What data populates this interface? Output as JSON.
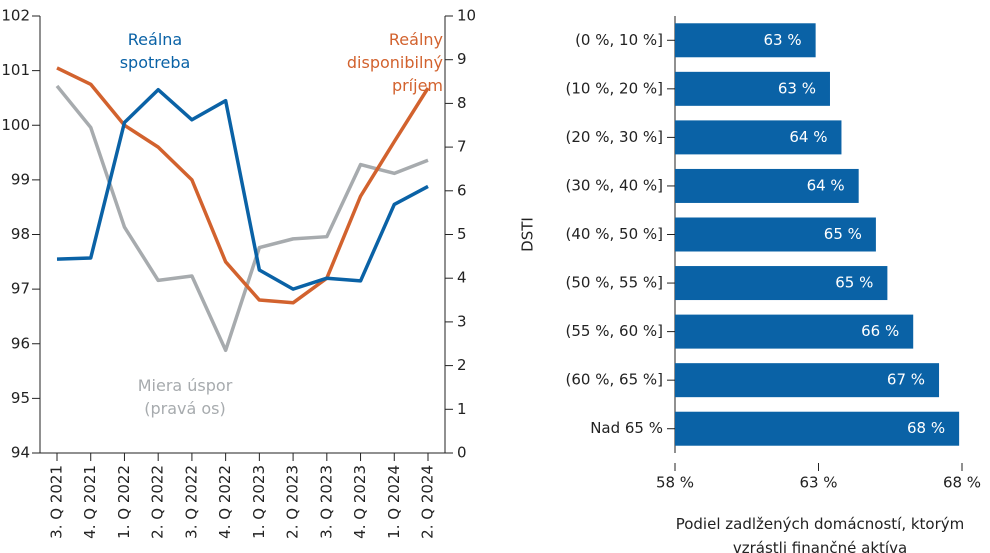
{
  "chart_data": [
    {
      "type": "line",
      "categories": [
        "3. Q 2021",
        "4. Q 2021",
        "1. Q 2022",
        "2. Q 2022",
        "3. Q 2022",
        "4. Q 2022",
        "1. Q 2023",
        "2. Q 2023",
        "3. Q 2023",
        "4. Q 2023",
        "1. Q 2024",
        "2. Q 2024"
      ],
      "series": [
        {
          "name": "Reálna spotreba",
          "color": "#0a62a6",
          "values": [
            97.55,
            97.57,
            100.05,
            100.65,
            100.1,
            100.45,
            97.35,
            97.0,
            97.2,
            97.15,
            98.55,
            98.88
          ]
        },
        {
          "name": "Reálny disponibilný príjem",
          "color": "#d2622e",
          "values": [
            101.05,
            100.75,
            100.0,
            99.6,
            99.0,
            97.5,
            96.8,
            96.75,
            97.2,
            98.7,
            99.7,
            100.68
          ]
        },
        {
          "name": "Miera úspor (pravá os)",
          "color": "#a7abae",
          "axis": "y2",
          "values": [
            8.4,
            7.45,
            5.17,
            3.95,
            4.05,
            2.35,
            4.7,
            4.9,
            4.95,
            6.6,
            6.4,
            6.7
          ]
        }
      ],
      "ylim": [
        94,
        102
      ],
      "yticks": [
        94,
        95,
        96,
        97,
        98,
        99,
        100,
        101,
        102
      ],
      "y2lim": [
        0,
        10
      ],
      "y2ticks": [
        0,
        1,
        2,
        3,
        4,
        5,
        6,
        7,
        8,
        9,
        10
      ]
    },
    {
      "type": "bar",
      "horizontal": true,
      "categories": [
        "(0 %, 10 %]",
        "(10 %, 20 %]",
        "(20 %, 30 %]",
        "(30 %, 40 %]",
        "(40 %, 50 %]",
        "(50 %, 55 %]",
        "(55 %, 60 %]",
        "(60 %, 65 %]",
        "Nad 65 %"
      ],
      "values": [
        62.9,
        63.4,
        63.8,
        64.4,
        65.0,
        65.4,
        66.3,
        67.2,
        67.9
      ],
      "value_labels": [
        "63 %",
        "63 %",
        "64 %",
        "64 %",
        "65 %",
        "65 %",
        "66 %",
        "67 %",
        "68 %"
      ],
      "color": "#0a62a6",
      "xlim": [
        58,
        68
      ],
      "xticks": [
        {
          "value": 58,
          "label": "58 %"
        },
        {
          "value": 63,
          "label": "63 %"
        },
        {
          "value": 68,
          "label": "68 %"
        }
      ],
      "ylabel": "DSTI",
      "xlabel": "Podiel zadlžených domácností, ktorým vzrástli finančné aktíva"
    }
  ]
}
